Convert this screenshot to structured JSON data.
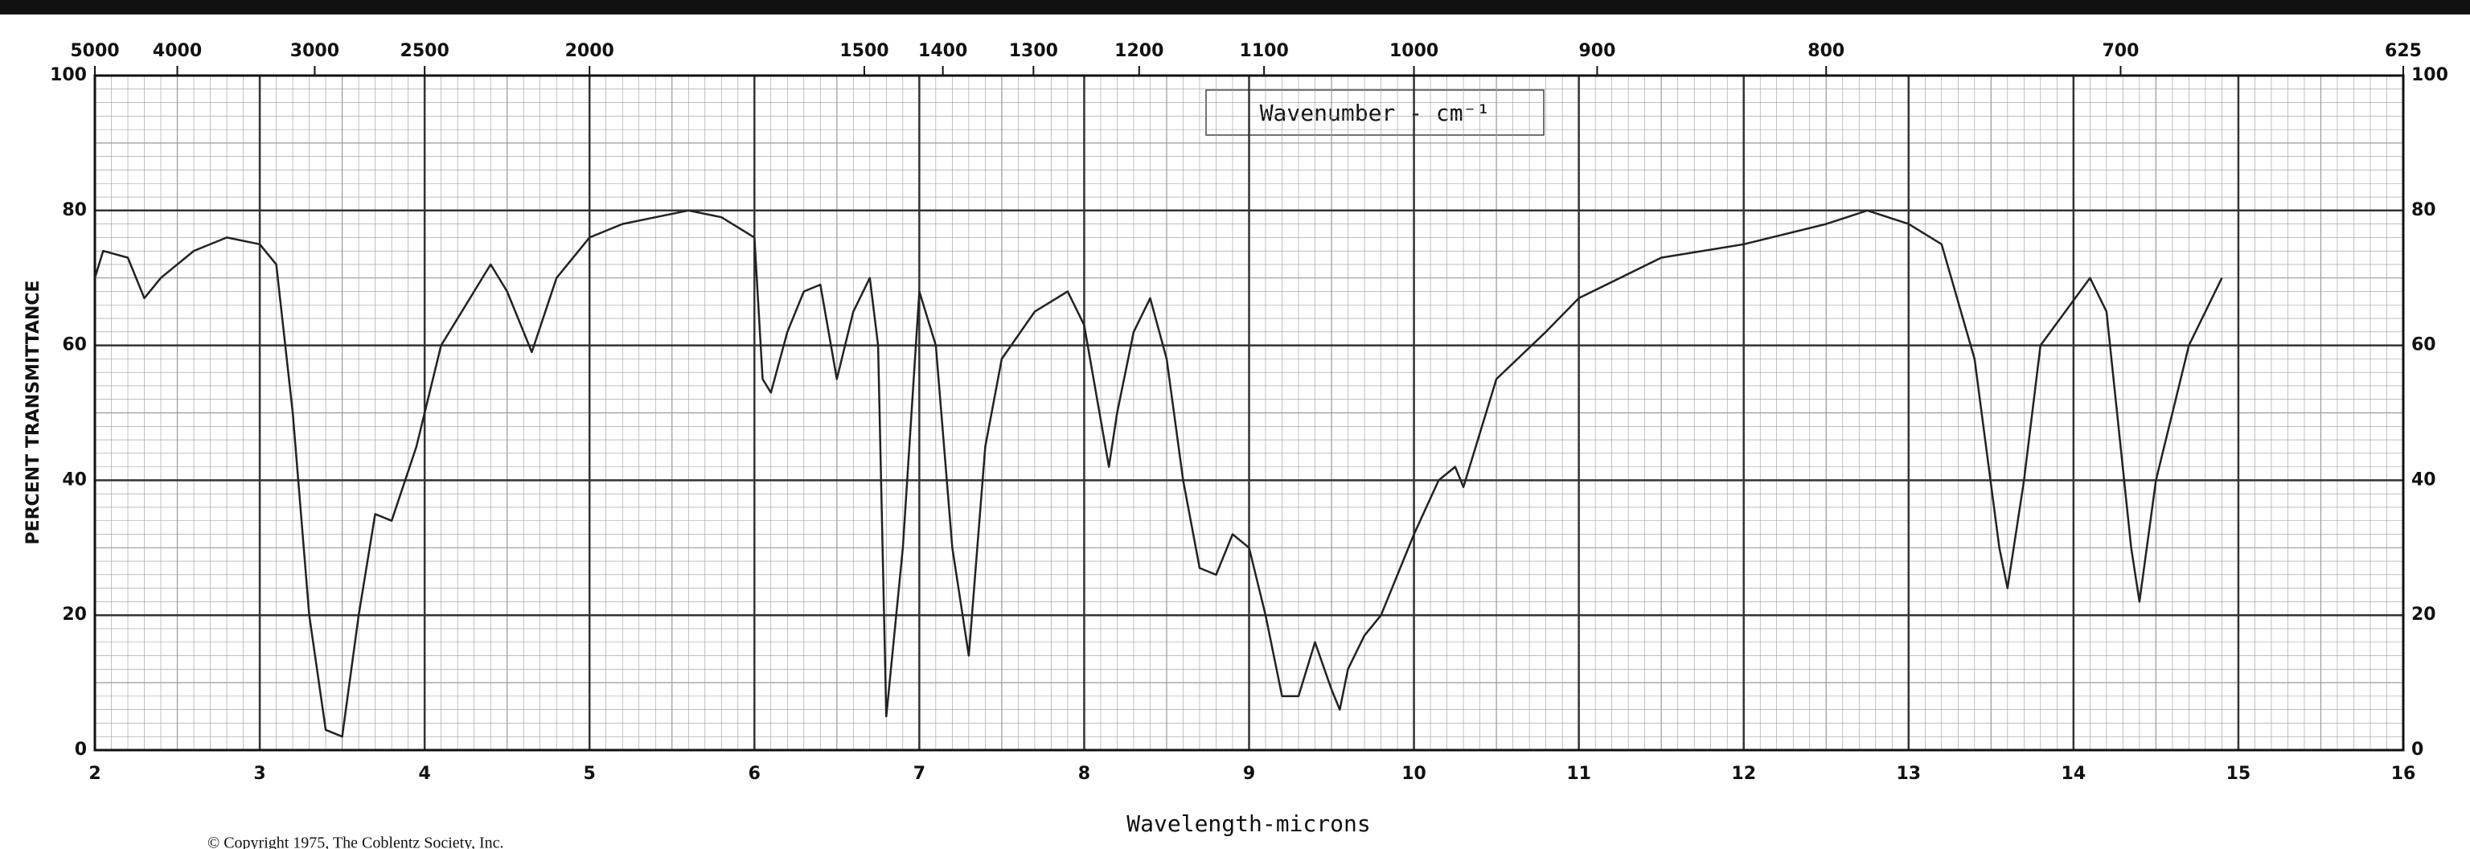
{
  "chart_data": {
    "type": "line",
    "title": "Wavenumber - cm⁻¹",
    "xlabel": "Wavelength-microns",
    "ylabel": "PERCENT TRANSMITTANCE",
    "footnote": "© Copyright 1975, The Coblentz Society, Inc.",
    "color": "#222222",
    "grid": true,
    "xlim": [
      2,
      16
    ],
    "xticks": [
      2,
      3,
      4,
      5,
      6,
      7,
      8,
      9,
      10,
      11,
      12,
      13,
      14,
      15,
      16
    ],
    "x2lim": [
      5000,
      625
    ],
    "x2ticks": [
      5000,
      4000,
      3000,
      2500,
      2000,
      1500,
      1400,
      1300,
      1200,
      1100,
      1000,
      900,
      800,
      700,
      625
    ],
    "ylim": [
      0,
      100
    ],
    "yticks": [
      0,
      20,
      40,
      60,
      80,
      100
    ],
    "x": [
      2.0,
      2.05,
      2.2,
      2.3,
      2.4,
      2.6,
      2.8,
      3.0,
      3.1,
      3.2,
      3.3,
      3.4,
      3.5,
      3.6,
      3.7,
      3.8,
      3.95,
      4.1,
      4.3,
      4.4,
      4.5,
      4.6,
      4.65,
      4.8,
      5.0,
      5.2,
      5.4,
      5.6,
      5.8,
      6.0,
      6.05,
      6.1,
      6.2,
      6.3,
      6.4,
      6.5,
      6.6,
      6.7,
      6.75,
      6.8,
      6.9,
      7.0,
      7.1,
      7.2,
      7.3,
      7.4,
      7.5,
      7.7,
      7.9,
      8.0,
      8.15,
      8.2,
      8.3,
      8.4,
      8.5,
      8.6,
      8.7,
      8.8,
      8.9,
      9.0,
      9.1,
      9.2,
      9.3,
      9.4,
      9.5,
      9.55,
      9.6,
      9.7,
      9.8,
      10.0,
      10.15,
      10.25,
      10.3,
      10.5,
      10.8,
      11.0,
      11.5,
      12.0,
      12.5,
      12.75,
      13.0,
      13.2,
      13.4,
      13.55,
      13.6,
      13.7,
      13.8,
      14.1,
      14.2,
      14.35,
      14.4,
      14.5,
      14.7,
      14.9
    ],
    "values": [
      70,
      74,
      73,
      67,
      70,
      74,
      76,
      75,
      72,
      50,
      20,
      3,
      2,
      20,
      35,
      34,
      45,
      60,
      68,
      72,
      68,
      62,
      59,
      70,
      76,
      78,
      79,
      80,
      79,
      76,
      55,
      53,
      62,
      68,
      69,
      55,
      65,
      70,
      60,
      5,
      30,
      68,
      60,
      30,
      14,
      45,
      58,
      65,
      68,
      63,
      42,
      50,
      62,
      67,
      58,
      40,
      27,
      26,
      32,
      30,
      20,
      8,
      8,
      16,
      9,
      6,
      12,
      17,
      20,
      32,
      40,
      42,
      39,
      55,
      62,
      67,
      73,
      75,
      78,
      80,
      78,
      75,
      58,
      30,
      24,
      40,
      60,
      70,
      65,
      30,
      22,
      40,
      60,
      70
    ]
  }
}
